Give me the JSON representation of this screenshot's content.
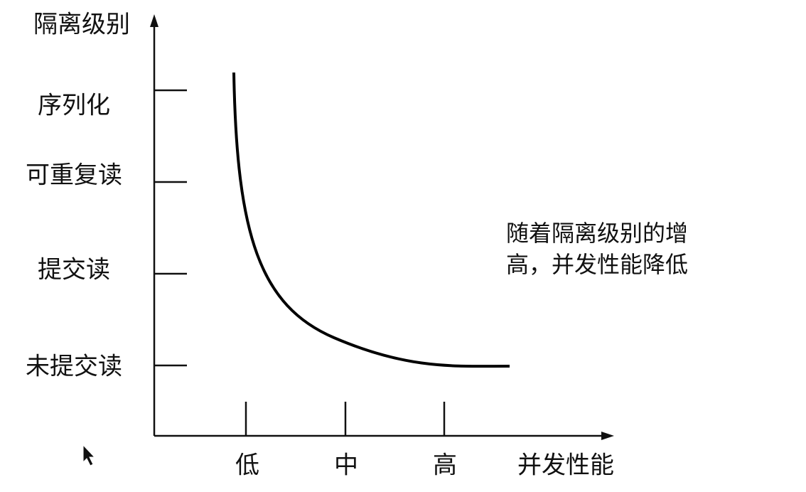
{
  "y_axis": {
    "label": "隔离级别",
    "levels": [
      "序列化",
      "可重复读",
      "提交读",
      "未提交读"
    ]
  },
  "x_axis": {
    "label": "并发性能",
    "levels": [
      "低",
      "中",
      "高"
    ]
  },
  "annotation": {
    "lines": [
      "随着隔离级别的增",
      "高，并发性能降低"
    ]
  }
}
